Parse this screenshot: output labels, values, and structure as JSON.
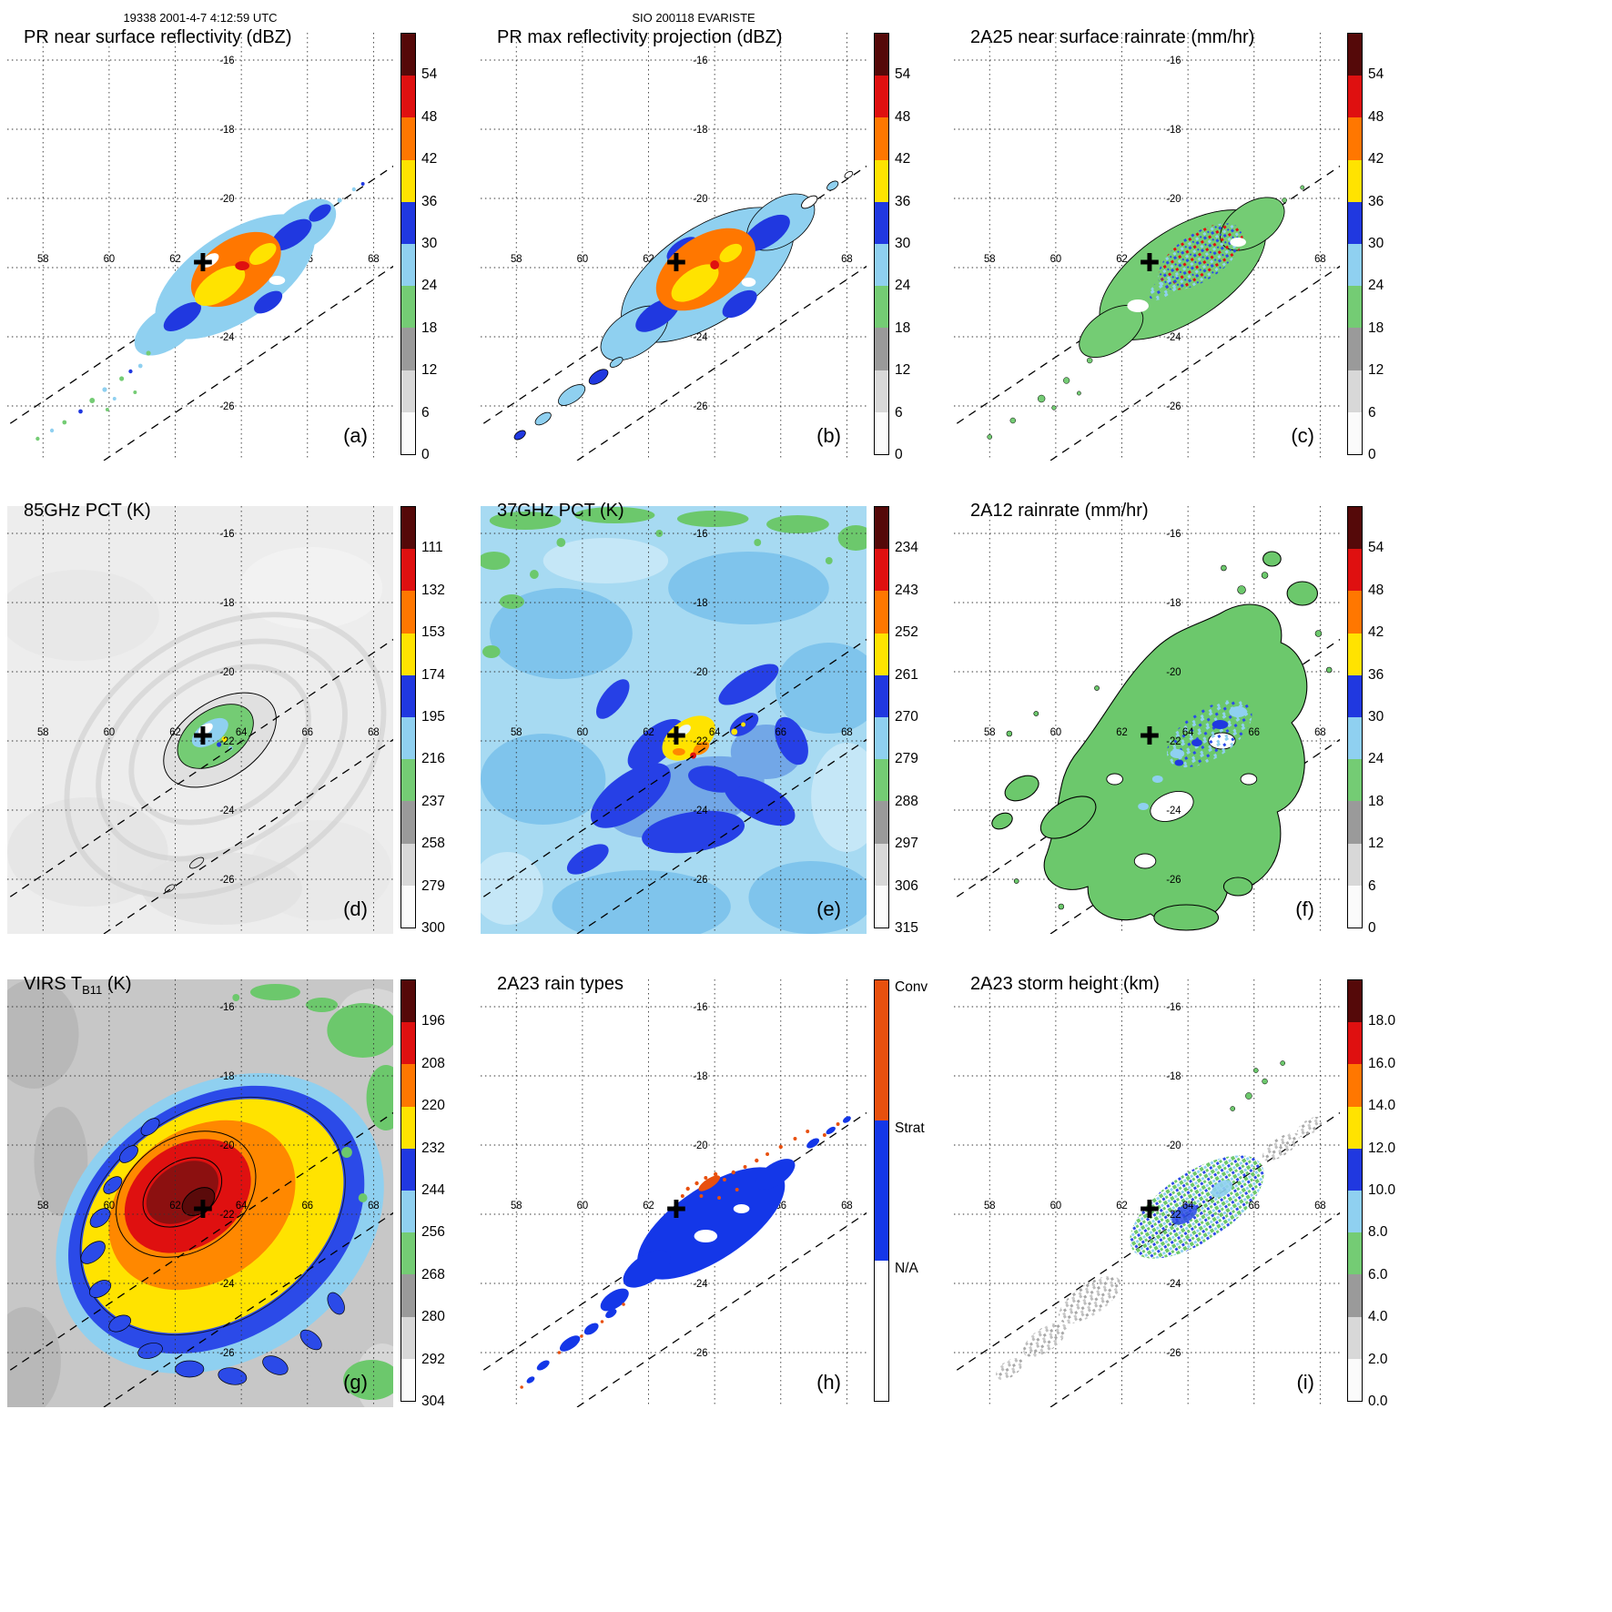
{
  "header": {
    "scan_info": "19338 2001-4-7 4:12:59 UTC",
    "storm_info": "SIO 200118 EVARISTE"
  },
  "map_labels": {
    "lon": [
      "58",
      "60",
      "62",
      "64",
      "66",
      "68"
    ],
    "lat": [
      "-16",
      "-18",
      "-20",
      "-22",
      "-24",
      "-26"
    ]
  },
  "colors": {
    "ramp_top_to_bottom": [
      "#550909",
      "#df1010",
      "#ff7700",
      "#ffe300",
      "#2038e0",
      "#8fd0f0",
      "#74cc74",
      "#9a9a9a",
      "#d8d8d8",
      "#fbfbfb"
    ],
    "raintype_colors": [
      "#e8500e",
      "#1437e8",
      "#ffffff"
    ],
    "swath_line": "#000000",
    "cyclone_marker": "#000000"
  },
  "panels": [
    {
      "id": "a",
      "title": "PR near surface reflectivity (dBZ)",
      "letter": "(a)",
      "colorbar": {
        "kind": "ramp",
        "ticks": [
          "54",
          "48",
          "42",
          "36",
          "30",
          "24",
          "18",
          "12",
          "6",
          "0"
        ]
      }
    },
    {
      "id": "b",
      "title": "PR max reflectivity projection (dBZ)",
      "letter": "(b)",
      "colorbar": {
        "kind": "ramp",
        "ticks": [
          "54",
          "48",
          "42",
          "36",
          "30",
          "24",
          "18",
          "12",
          "6",
          "0"
        ]
      }
    },
    {
      "id": "c",
      "title": "2A25 near surface rainrate (mm/hr)",
      "letter": "(c)",
      "colorbar": {
        "kind": "ramp",
        "ticks": [
          "54",
          "48",
          "42",
          "36",
          "30",
          "24",
          "18",
          "12",
          "6",
          "0"
        ]
      }
    },
    {
      "id": "d",
      "title": "85GHz PCT (K)",
      "letter": "(d)",
      "colorbar": {
        "kind": "ramp",
        "ticks": [
          "111",
          "132",
          "153",
          "174",
          "195",
          "216",
          "237",
          "258",
          "279",
          "300"
        ]
      }
    },
    {
      "id": "e",
      "title": "37GHz PCT (K)",
      "letter": "(e)",
      "colorbar": {
        "kind": "ramp",
        "ticks": [
          "234",
          "243",
          "252",
          "261",
          "270",
          "279",
          "288",
          "297",
          "306",
          "315"
        ]
      }
    },
    {
      "id": "f",
      "title": "2A12 rainrate (mm/hr)",
      "letter": "(f)",
      "colorbar": {
        "kind": "ramp",
        "ticks": [
          "54",
          "48",
          "42",
          "36",
          "30",
          "24",
          "18",
          "12",
          "6",
          "0"
        ]
      }
    },
    {
      "id": "g",
      "title_pre": "VIRS T",
      "title_sub": "B11",
      "title_post": " (K)",
      "letter": "(g)",
      "colorbar": {
        "kind": "ramp",
        "ticks": [
          "196",
          "208",
          "220",
          "232",
          "244",
          "256",
          "268",
          "280",
          "292",
          "304"
        ]
      }
    },
    {
      "id": "h",
      "title": "2A23 rain types",
      "letter": "(h)",
      "colorbar": {
        "kind": "raintype",
        "ticks": [
          "Conv",
          "Strat",
          "N/A"
        ]
      }
    },
    {
      "id": "i",
      "title": "2A23 storm height (km)",
      "letter": "(i)",
      "colorbar": {
        "kind": "ramp",
        "ticks": [
          "18.0",
          "16.0",
          "14.0",
          "12.0",
          "10.0",
          "8.0",
          "6.0",
          "4.0",
          "2.0",
          "0.0"
        ]
      }
    }
  ],
  "chart_data": [
    {
      "panel": "a",
      "type": "heatmap",
      "title": "PR near surface reflectivity (dBZ)",
      "units": "dBZ",
      "lon_ticks": [
        58,
        60,
        62,
        64,
        66,
        68
      ],
      "lat_ticks": [
        -16,
        -18,
        -20,
        -22,
        -24,
        -26
      ],
      "colorbar_ticks": [
        0,
        6,
        12,
        18,
        24,
        30,
        36,
        42,
        48,
        54
      ],
      "cyclone_marker": {
        "lon": 62.3,
        "lat": -21
      },
      "notes": "narrow PR swath, convective core 36-54 dBZ near 63E 21.5S"
    },
    {
      "panel": "b",
      "type": "heatmap",
      "title": "PR max reflectivity projection (dBZ)",
      "units": "dBZ",
      "lon_ticks": [
        58,
        60,
        62,
        64,
        66,
        68
      ],
      "lat_ticks": [
        -16,
        -18,
        -20,
        -22,
        -24,
        -26
      ],
      "colorbar_ticks": [
        0,
        6,
        12,
        18,
        24,
        30,
        36,
        42,
        48,
        54
      ],
      "cyclone_marker": {
        "lon": 62.3,
        "lat": -21
      }
    },
    {
      "panel": "c",
      "type": "heatmap",
      "title": "2A25 near surface rainrate (mm/hr)",
      "units": "mm/hr",
      "lon_ticks": [
        58,
        60,
        62,
        64,
        66,
        68
      ],
      "lat_ticks": [
        -16,
        -18,
        -20,
        -22,
        -24,
        -26
      ],
      "colorbar_ticks": [
        0,
        6,
        12,
        18,
        24,
        30,
        36,
        42,
        48,
        54
      ],
      "cyclone_marker": {
        "lon": 62.3,
        "lat": -21
      }
    },
    {
      "panel": "d",
      "type": "heatmap",
      "title": "85GHz PCT (K)",
      "units": "K",
      "lon_ticks": [
        58,
        60,
        62,
        64,
        66,
        68
      ],
      "lat_ticks": [
        -16,
        -18,
        -20,
        -22,
        -24,
        -26
      ],
      "colorbar_ticks": [
        300,
        279,
        258,
        237,
        216,
        195,
        174,
        153,
        132,
        111
      ],
      "cyclone_marker": {
        "lon": 62.3,
        "lat": -21
      }
    },
    {
      "panel": "e",
      "type": "heatmap",
      "title": "37GHz PCT (K)",
      "units": "K",
      "lon_ticks": [
        58,
        60,
        62,
        64,
        66,
        68
      ],
      "lat_ticks": [
        -16,
        -18,
        -20,
        -22,
        -24,
        -26
      ],
      "colorbar_ticks": [
        315,
        306,
        297,
        288,
        279,
        270,
        261,
        252,
        243,
        234
      ],
      "cyclone_marker": {
        "lon": 62.3,
        "lat": -21
      }
    },
    {
      "panel": "f",
      "type": "heatmap",
      "title": "2A12 rainrate (mm/hr)",
      "units": "mm/hr",
      "lon_ticks": [
        58,
        60,
        62,
        64,
        66,
        68
      ],
      "lat_ticks": [
        -16,
        -18,
        -20,
        -22,
        -24,
        -26
      ],
      "colorbar_ticks": [
        0,
        6,
        12,
        18,
        24,
        30,
        36,
        42,
        48,
        54
      ],
      "cyclone_marker": {
        "lon": 62.3,
        "lat": -21
      }
    },
    {
      "panel": "g",
      "type": "heatmap",
      "title": "VIRS TB11 (K)",
      "units": "K",
      "lon_ticks": [
        58,
        60,
        62,
        64,
        66,
        68
      ],
      "lat_ticks": [
        -16,
        -18,
        -20,
        -22,
        -24,
        -26
      ],
      "colorbar_ticks": [
        304,
        292,
        280,
        268,
        256,
        244,
        232,
        220,
        208,
        196
      ],
      "cyclone_marker": {
        "lon": 62.3,
        "lat": -21
      }
    },
    {
      "panel": "h",
      "type": "heatmap",
      "title": "2A23 rain types",
      "categories": [
        "Conv",
        "Strat",
        "N/A"
      ],
      "lon_ticks": [
        58,
        60,
        62,
        64,
        66,
        68
      ],
      "lat_ticks": [
        -16,
        -18,
        -20,
        -22,
        -24,
        -26
      ],
      "cyclone_marker": {
        "lon": 62.3,
        "lat": -21
      }
    },
    {
      "panel": "i",
      "type": "heatmap",
      "title": "2A23 storm height (km)",
      "units": "km",
      "lon_ticks": [
        58,
        60,
        62,
        64,
        66,
        68
      ],
      "lat_ticks": [
        -16,
        -18,
        -20,
        -22,
        -24,
        -26
      ],
      "colorbar_ticks": [
        0.0,
        2.0,
        4.0,
        6.0,
        8.0,
        10.0,
        12.0,
        14.0,
        16.0,
        18.0
      ],
      "cyclone_marker": {
        "lon": 62.3,
        "lat": -21
      }
    }
  ]
}
